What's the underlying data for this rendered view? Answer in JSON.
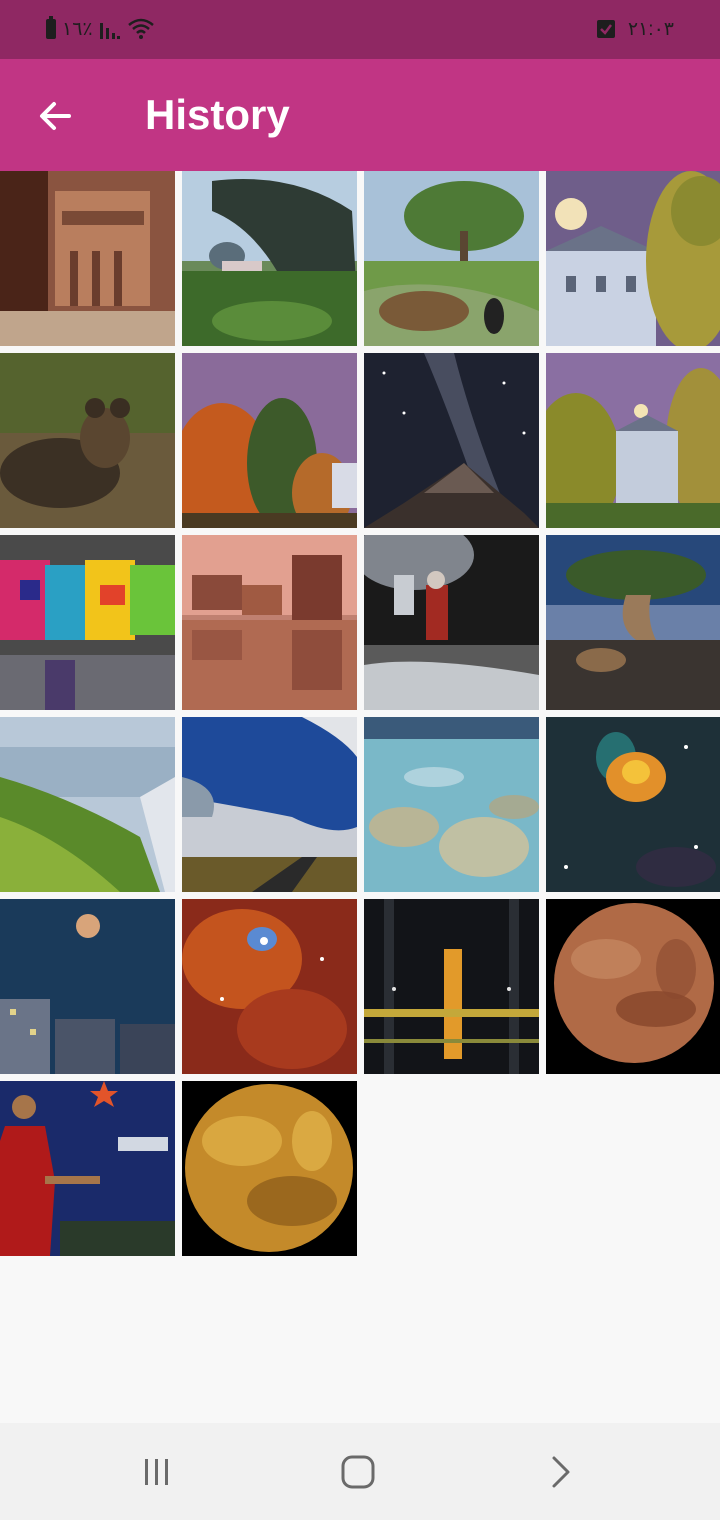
{
  "status_bar": {
    "battery_text": "٪١٦",
    "time": "٢١:٠٣",
    "icons": [
      "battery-icon",
      "signal-icon",
      "wifi-icon",
      "checkbox-notification-icon"
    ]
  },
  "app_bar": {
    "title": "History",
    "back_icon": "arrow-left-icon",
    "color": "#c13584"
  },
  "gallery": {
    "items": [
      "petra-treasury",
      "farmers-harvesting",
      "park-garden-path",
      "moon-over-house",
      "hyena-resting",
      "autumn-trees-dusk",
      "milky-way-mountain",
      "moonrise-house-autumn",
      "colorful-murals",
      "cadillac-ranch-reflection",
      "astronaut-suit-night",
      "bristlecone-pine",
      "green-coastal-hills",
      "clouds-over-road",
      "clear-shallow-water",
      "nebula-space",
      "moon-over-city",
      "cosmic-cloud-red",
      "rocket-assembly-building",
      "mars-planet",
      "woman-red-dress-mural",
      "venus-planet"
    ]
  },
  "nav_bar": {
    "recents_icon": "recents-icon",
    "home_icon": "home-icon",
    "back_icon": "chevron-right-icon"
  }
}
